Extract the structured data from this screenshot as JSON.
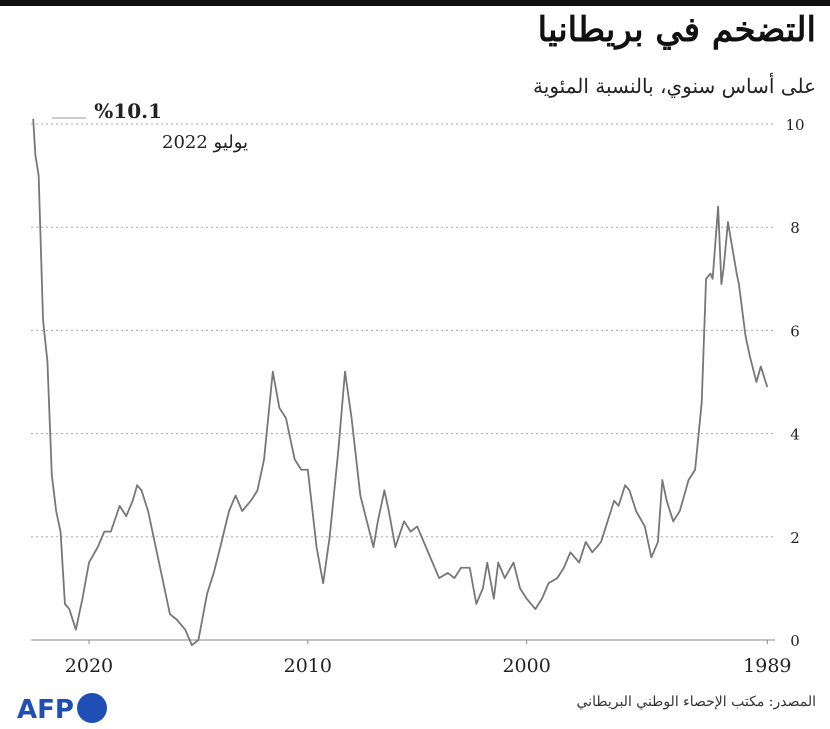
{
  "chart_data": {
    "type": "line",
    "title": "التضخم في بريطانيا",
    "subtitle": "على أساس سنوي، بالنسبة المئوية",
    "source": "المصدر: مكتب الإحصاء الوطني البريطاني",
    "logo": "AFP",
    "annotations": [
      "%10.1",
      "يوليو 2022"
    ],
    "color": "#777777",
    "grid": true,
    "xlim": [
      2022.65,
      1988.65
    ],
    "xticks": [
      2020,
      2010,
      2000,
      1989
    ],
    "ylim": [
      0,
      10
    ],
    "yticks": [
      0,
      2,
      4,
      6,
      8,
      10
    ],
    "x": [
      1989.0,
      1989.3,
      1989.5,
      1989.8,
      1990.0,
      1990.3,
      1990.4,
      1990.8,
      1991.0,
      1991.1,
      1991.25,
      1991.5,
      1991.6,
      1991.8,
      1992.0,
      1992.3,
      1992.6,
      1993.0,
      1993.3,
      1993.6,
      1993.8,
      1994.0,
      1994.3,
      1994.6,
      1995.0,
      1995.3,
      1995.5,
      1995.8,
      1996.0,
      1996.3,
      1996.6,
      1997.0,
      1997.3,
      1997.6,
      1998.0,
      1998.3,
      1998.6,
      1999.0,
      1999.3,
      1999.6,
      2000.0,
      2000.3,
      2000.6,
      2001.0,
      2001.3,
      2001.5,
      2001.8,
      2002.0,
      2002.3,
      2002.6,
      2003.0,
      2003.3,
      2003.6,
      2004.0,
      2004.3,
      2004.6,
      2005.0,
      2005.3,
      2005.6,
      2006.0,
      2006.3,
      2006.5,
      2006.8,
      2007.0,
      2007.3,
      2007.6,
      2008.0,
      2008.3,
      2008.6,
      2009.0,
      2009.3,
      2009.6,
      2010.0,
      2010.3,
      2010.6,
      2011.0,
      2011.3,
      2011.6,
      2012.0,
      2012.3,
      2012.6,
      2013.0,
      2013.3,
      2013.6,
      2014.0,
      2014.3,
      2014.6,
      2015.0,
      2015.3,
      2015.6,
      2016.0,
      2016.3,
      2016.6,
      2017.0,
      2017.3,
      2017.6,
      2017.8,
      2018.0,
      2018.3,
      2018.6,
      2019.0,
      2019.3,
      2019.6,
      2020.0,
      2020.3,
      2020.6,
      2020.9,
      2021.1,
      2021.3,
      2021.5,
      2021.7,
      2021.9,
      2022.1,
      2022.3,
      2022.45,
      2022.55
    ],
    "values": [
      4.9,
      5.3,
      5.0,
      5.5,
      5.9,
      6.9,
      7.1,
      8.1,
      7.2,
      6.9,
      8.4,
      7.0,
      7.1,
      7.0,
      4.6,
      3.3,
      3.1,
      2.5,
      2.3,
      2.7,
      3.1,
      1.9,
      1.6,
      2.2,
      2.5,
      2.9,
      3.0,
      2.6,
      2.7,
      2.3,
      1.9,
      1.7,
      1.9,
      1.5,
      1.7,
      1.4,
      1.2,
      1.1,
      0.8,
      0.6,
      0.8,
      1.0,
      1.5,
      1.2,
      1.5,
      0.8,
      1.5,
      1.0,
      0.7,
      1.4,
      1.4,
      1.2,
      1.3,
      1.2,
      1.5,
      1.8,
      2.2,
      2.1,
      2.3,
      1.8,
      2.5,
      2.9,
      2.3,
      1.8,
      2.3,
      2.8,
      4.3,
      5.2,
      3.7,
      2.0,
      1.1,
      1.8,
      3.3,
      3.3,
      3.5,
      4.3,
      4.5,
      5.2,
      3.5,
      2.9,
      2.7,
      2.5,
      2.8,
      2.5,
      1.8,
      1.3,
      0.9,
      0.0,
      -0.1,
      0.2,
      0.4,
      0.5,
      1.1,
      1.9,
      2.5,
      2.9,
      3.0,
      2.7,
      2.4,
      2.6,
      2.1,
      2.1,
      1.8,
      1.5,
      0.8,
      0.2,
      0.6,
      0.7,
      2.1,
      2.5,
      3.2,
      5.4,
      6.2,
      9.0,
      9.4,
      10.1
    ]
  }
}
